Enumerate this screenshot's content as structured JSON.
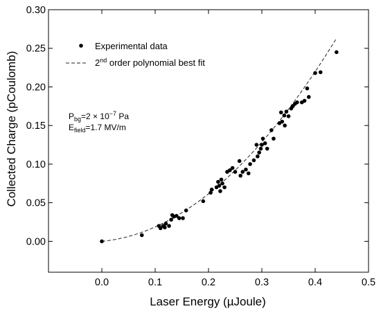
{
  "chart_data": {
    "type": "scatter",
    "title": "",
    "xlabel": "Laser Energy (µJoule)",
    "ylabel": "Collected Charge (pCoulomb)",
    "xlim": [
      -0.1,
      0.5
    ],
    "ylim": [
      -0.04,
      0.3
    ],
    "x_ticks": [
      "0.0",
      "0.1",
      "0.2",
      "0.3",
      "0.4",
      "0.5"
    ],
    "y_ticks": [
      "0.00",
      "0.05",
      "0.10",
      "0.15",
      "0.20",
      "0.25",
      "0.30"
    ],
    "grid": false,
    "legend_position": "top-left",
    "legend": [
      {
        "label": "Experimental data",
        "marker": "dot"
      },
      {
        "label_main": "2",
        "label_sup": "nd",
        "label_rest": " order polynomial best fit",
        "marker": "dashed-line"
      }
    ],
    "annotations": {
      "pressure": {
        "symbol": "P",
        "sub": "bg",
        "value": "=2 × 10",
        "exp": "−7",
        "unit": " Pa"
      },
      "field": {
        "symbol": "E",
        "sub": "field",
        "value": "=1.7 MV/m"
      }
    },
    "series": [
      {
        "name": "Experimental data",
        "type": "scatter",
        "color": "#000000",
        "points": [
          [
            0.0,
            0.0
          ],
          [
            0.075,
            0.008
          ],
          [
            0.107,
            0.02
          ],
          [
            0.11,
            0.017
          ],
          [
            0.115,
            0.02
          ],
          [
            0.118,
            0.018
          ],
          [
            0.12,
            0.023
          ],
          [
            0.126,
            0.02
          ],
          [
            0.13,
            0.028
          ],
          [
            0.132,
            0.034
          ],
          [
            0.135,
            0.032
          ],
          [
            0.14,
            0.033
          ],
          [
            0.145,
            0.03
          ],
          [
            0.152,
            0.03
          ],
          [
            0.158,
            0.04
          ],
          [
            0.19,
            0.052
          ],
          [
            0.204,
            0.063
          ],
          [
            0.206,
            0.067
          ],
          [
            0.215,
            0.07
          ],
          [
            0.218,
            0.077
          ],
          [
            0.22,
            0.072
          ],
          [
            0.222,
            0.065
          ],
          [
            0.224,
            0.08
          ],
          [
            0.226,
            0.075
          ],
          [
            0.23,
            0.07
          ],
          [
            0.235,
            0.09
          ],
          [
            0.24,
            0.092
          ],
          [
            0.245,
            0.095
          ],
          [
            0.25,
            0.09
          ],
          [
            0.258,
            0.104
          ],
          [
            0.26,
            0.085
          ],
          [
            0.264,
            0.09
          ],
          [
            0.27,
            0.093
          ],
          [
            0.275,
            0.088
          ],
          [
            0.278,
            0.1
          ],
          [
            0.285,
            0.105
          ],
          [
            0.29,
            0.125
          ],
          [
            0.292,
            0.11
          ],
          [
            0.295,
            0.115
          ],
          [
            0.298,
            0.12
          ],
          [
            0.3,
            0.125
          ],
          [
            0.302,
            0.133
          ],
          [
            0.306,
            0.127
          ],
          [
            0.31,
            0.12
          ],
          [
            0.318,
            0.144
          ],
          [
            0.322,
            0.133
          ],
          [
            0.333,
            0.153
          ],
          [
            0.336,
            0.167
          ],
          [
            0.338,
            0.155
          ],
          [
            0.342,
            0.163
          ],
          [
            0.343,
            0.15
          ],
          [
            0.346,
            0.168
          ],
          [
            0.35,
            0.162
          ],
          [
            0.355,
            0.172
          ],
          [
            0.358,
            0.175
          ],
          [
            0.362,
            0.178
          ],
          [
            0.366,
            0.18
          ],
          [
            0.375,
            0.18
          ],
          [
            0.38,
            0.182
          ],
          [
            0.385,
            0.198
          ],
          [
            0.388,
            0.187
          ],
          [
            0.4,
            0.218
          ],
          [
            0.41,
            0.219
          ],
          [
            0.44,
            0.245
          ]
        ]
      },
      {
        "name": "2nd order polynomial best fit",
        "type": "line",
        "style": "dashed",
        "color": "#222222",
        "coefficients": {
          "a0": 0.0,
          "a1": 0.0656,
          "a2": 1.21
        },
        "x_range": [
          0.0,
          0.44
        ]
      }
    ]
  }
}
